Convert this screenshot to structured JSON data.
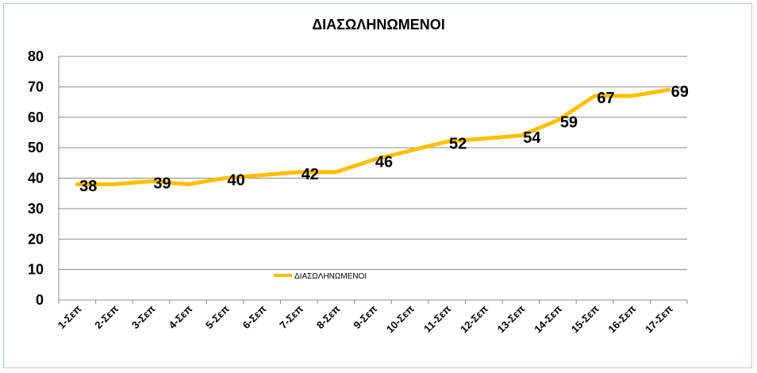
{
  "chart_data": {
    "type": "line",
    "title": "ΔΙΑΣΩΛΗΝΩΜΕΝΟΙ",
    "categories": [
      "1-Σεπ",
      "2-Σεπ",
      "3-Σεπ",
      "4-Σεπ",
      "5-Σεπ",
      "6-Σεπ",
      "7-Σεπ",
      "8-Σεπ",
      "9-Σεπ",
      "10-Σεπ",
      "11-Σεπ",
      "12-Σεπ",
      "13-Σεπ",
      "14-Σεπ",
      "15-Σεπ",
      "16-Σεπ",
      "17-Σεπ"
    ],
    "series": [
      {
        "name": "ΔΙΑΣΩΛΗΝΩΜΕΝΟΙ",
        "values": [
          38,
          38,
          39,
          38,
          40,
          41,
          42,
          42,
          46,
          49,
          52,
          53,
          54,
          59,
          67,
          67,
          69
        ],
        "color": "#ffc000"
      }
    ],
    "data_labels": [
      {
        "index": 0,
        "text": "38"
      },
      {
        "index": 2,
        "text": "39"
      },
      {
        "index": 4,
        "text": "40"
      },
      {
        "index": 6,
        "text": "42"
      },
      {
        "index": 8,
        "text": "46"
      },
      {
        "index": 10,
        "text": "52"
      },
      {
        "index": 12,
        "text": "54"
      },
      {
        "index": 13,
        "text": "59"
      },
      {
        "index": 14,
        "text": "67"
      },
      {
        "index": 16,
        "text": "69"
      }
    ],
    "ylim": [
      0,
      80
    ],
    "yticks": [
      0,
      10,
      20,
      30,
      40,
      50,
      60,
      70,
      80
    ],
    "grid": true,
    "legend": "bottom-left"
  }
}
